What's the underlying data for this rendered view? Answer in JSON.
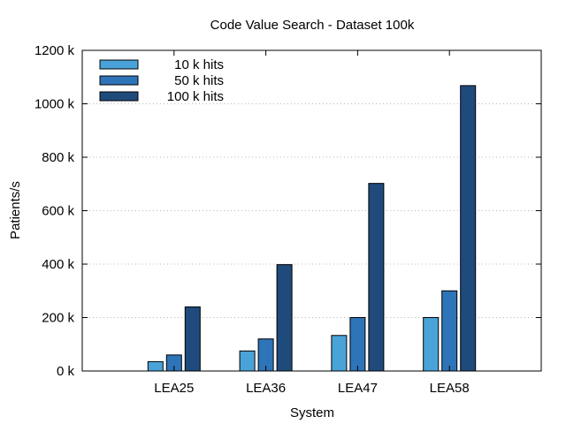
{
  "chart_data": {
    "type": "bar",
    "title": "Code Value Search - Dataset 100k",
    "xlabel": "System",
    "ylabel": "Patients/s",
    "categories": [
      "LEA25",
      "LEA36",
      "LEA47",
      "LEA58"
    ],
    "series": [
      {
        "name": "10 k hits",
        "values": [
          35000,
          75000,
          133000,
          200000
        ],
        "color": "#4aa3d8"
      },
      {
        "name": "50 k hits",
        "values": [
          60000,
          120000,
          200000,
          300000
        ],
        "color": "#2e74b8"
      },
      {
        "name": "100 k hits",
        "values": [
          240000,
          398000,
          702000,
          1068000
        ],
        "color": "#1f4a7c"
      }
    ],
    "ylim": [
      0,
      1200000
    ],
    "yticks": [
      0,
      200000,
      400000,
      600000,
      800000,
      1000000,
      1200000
    ],
    "ytick_labels": [
      "0 k",
      "200 k",
      "400 k",
      "600 k",
      "800 k",
      "1000 k",
      "1200 k"
    ],
    "grid": true,
    "legend_position": "top-left"
  }
}
